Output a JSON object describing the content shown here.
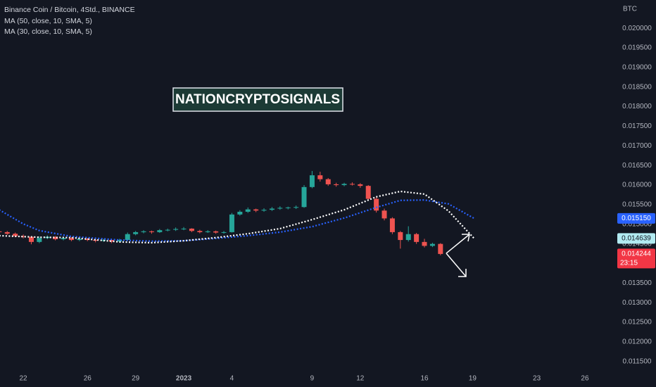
{
  "chart_data": {
    "type": "candlestick",
    "title": "Binance Coin / Bitcoin, 4Std., BINANCE",
    "axis_unit": "BTC",
    "watermark": "NATIONCRYPTOSIGNALS",
    "up_color": "#26a69a",
    "down_color": "#ef5350",
    "grid": false,
    "xlim": [
      -1.45,
      36.93
    ],
    "xticks": [
      {
        "value": 0,
        "label": "22"
      },
      {
        "value": 4,
        "label": "26"
      },
      {
        "value": 7,
        "label": "29"
      },
      {
        "value": 10,
        "label": "2023"
      },
      {
        "value": 13,
        "label": "4"
      },
      {
        "value": 18,
        "label": "9"
      },
      {
        "value": 21,
        "label": "12"
      },
      {
        "value": 25,
        "label": "16"
      },
      {
        "value": 28,
        "label": "19"
      },
      {
        "value": 32,
        "label": "23"
      },
      {
        "value": 35,
        "label": "26"
      }
    ],
    "ylim": [
      0.01121,
      0.02072
    ],
    "yticks": [
      {
        "value": 0.0115,
        "label": "0.011500"
      },
      {
        "value": 0.012,
        "label": "0.012000"
      },
      {
        "value": 0.0125,
        "label": "0.012500"
      },
      {
        "value": 0.013,
        "label": "0.013000"
      },
      {
        "value": 0.0135,
        "label": "0.013500"
      },
      {
        "value": 0.014,
        "label": "0.014000"
      },
      {
        "value": 0.0145,
        "label": "0.014500"
      },
      {
        "value": 0.015,
        "label": "0.015000"
      },
      {
        "value": 0.0155,
        "label": "0.015500"
      },
      {
        "value": 0.016,
        "label": "0.016000"
      },
      {
        "value": 0.0165,
        "label": "0.016500"
      },
      {
        "value": 0.017,
        "label": "0.017000"
      },
      {
        "value": 0.0175,
        "label": "0.017500"
      },
      {
        "value": 0.018,
        "label": "0.018000"
      },
      {
        "value": 0.0185,
        "label": "0.018500"
      },
      {
        "value": 0.019,
        "label": "0.019000"
      },
      {
        "value": 0.0195,
        "label": "0.019500"
      },
      {
        "value": 0.02,
        "label": "0.020000"
      }
    ],
    "x": [
      -1.5,
      -1,
      -0.5,
      0,
      0.5,
      1,
      1.5,
      2,
      2.5,
      3,
      3.5,
      4,
      4.5,
      5,
      5.5,
      6,
      6.5,
      7,
      7.5,
      8,
      8.5,
      9,
      9.5,
      10,
      10.5,
      11,
      11.5,
      12,
      12.5,
      13,
      13.5,
      14,
      14.5,
      15,
      15.5,
      16,
      16.5,
      17,
      17.5,
      18,
      18.5,
      19,
      19.5,
      20,
      20.5,
      21,
      21.5,
      22,
      22.5,
      23,
      23.5,
      24,
      24.5,
      25,
      25.5,
      26
    ],
    "ohlc": [
      [
        0.01482,
        0.01486,
        0.01477,
        0.0148
      ],
      [
        0.0148,
        0.01483,
        0.01473,
        0.01476
      ],
      [
        0.01476,
        0.01479,
        0.01467,
        0.0147
      ],
      [
        0.0147,
        0.01474,
        0.01464,
        0.01468
      ],
      [
        0.01468,
        0.0147,
        0.01449,
        0.01455
      ],
      [
        0.01455,
        0.01469,
        0.01452,
        0.01465
      ],
      [
        0.01465,
        0.01472,
        0.01462,
        0.01468
      ],
      [
        0.01468,
        0.0147,
        0.01459,
        0.01462
      ],
      [
        0.01462,
        0.01469,
        0.01459,
        0.01465
      ],
      [
        0.01465,
        0.01467,
        0.01457,
        0.0146
      ],
      [
        0.0146,
        0.01466,
        0.01457,
        0.01463
      ],
      [
        0.01463,
        0.01465,
        0.01457,
        0.0146
      ],
      [
        0.0146,
        0.01462,
        0.01454,
        0.01458
      ],
      [
        0.01458,
        0.01463,
        0.01455,
        0.0146
      ],
      [
        0.0146,
        0.01462,
        0.01452,
        0.01456
      ],
      [
        0.01456,
        0.01463,
        0.01453,
        0.0146
      ],
      [
        0.0146,
        0.01479,
        0.01458,
        0.01475
      ],
      [
        0.01475,
        0.01483,
        0.01472,
        0.0148
      ],
      [
        0.0148,
        0.01485,
        0.01477,
        0.01482
      ],
      [
        0.01482,
        0.01484,
        0.01476,
        0.0148
      ],
      [
        0.0148,
        0.01488,
        0.01478,
        0.01485
      ],
      [
        0.01485,
        0.01489,
        0.01482,
        0.01486
      ],
      [
        0.01486,
        0.01492,
        0.01483,
        0.01488
      ],
      [
        0.01488,
        0.01493,
        0.01485,
        0.01489
      ],
      [
        0.01489,
        0.0149,
        0.0148,
        0.01483
      ],
      [
        0.01483,
        0.01486,
        0.01477,
        0.0148
      ],
      [
        0.0148,
        0.01485,
        0.01478,
        0.01482
      ],
      [
        0.01482,
        0.01484,
        0.01476,
        0.01479
      ],
      [
        0.01479,
        0.01483,
        0.01476,
        0.0148
      ],
      [
        0.0148,
        0.01529,
        0.01479,
        0.01525
      ],
      [
        0.01525,
        0.01536,
        0.01522,
        0.01532
      ],
      [
        0.01532,
        0.01543,
        0.01529,
        0.01538
      ],
      [
        0.01538,
        0.0154,
        0.01531,
        0.01535
      ],
      [
        0.01535,
        0.01541,
        0.01532,
        0.01537
      ],
      [
        0.01537,
        0.01544,
        0.01534,
        0.0154
      ],
      [
        0.0154,
        0.01546,
        0.01537,
        0.01542
      ],
      [
        0.01542,
        0.01545,
        0.01538,
        0.01543
      ],
      [
        0.01543,
        0.01548,
        0.01539,
        0.01544
      ],
      [
        0.01544,
        0.016,
        0.01542,
        0.01595
      ],
      [
        0.01595,
        0.01636,
        0.01592,
        0.01625
      ],
      [
        0.01625,
        0.01634,
        0.01609,
        0.01615
      ],
      [
        0.01615,
        0.01618,
        0.01598,
        0.01602
      ],
      [
        0.01602,
        0.01606,
        0.01596,
        0.016
      ],
      [
        0.016,
        0.01606,
        0.01597,
        0.01603
      ],
      [
        0.01603,
        0.01607,
        0.01599,
        0.01602
      ],
      [
        0.01602,
        0.01605,
        0.01593,
        0.01598
      ],
      [
        0.01598,
        0.016,
        0.0156,
        0.01565
      ],
      [
        0.01565,
        0.01569,
        0.0153,
        0.01535
      ],
      [
        0.01535,
        0.0154,
        0.0151,
        0.01515
      ],
      [
        0.01515,
        0.01518,
        0.01475,
        0.0148
      ],
      [
        0.0148,
        0.01483,
        0.01438,
        0.0146
      ],
      [
        0.0146,
        0.01495,
        0.01456,
        0.01475
      ],
      [
        0.01475,
        0.01478,
        0.0145,
        0.01455
      ],
      [
        0.01455,
        0.01463,
        0.01441,
        0.01445
      ],
      [
        0.01445,
        0.01453,
        0.01442,
        0.0145
      ],
      [
        0.0145,
        0.01452,
        0.01421,
        0.014244
      ]
    ],
    "series": [
      {
        "name": "MA (50, close, 10, SMA, 5)",
        "color": "#2962ff",
        "x": [
          -1.5,
          0,
          1,
          3,
          6,
          8,
          10,
          12,
          14,
          16,
          18,
          20,
          22,
          23.5,
          25,
          26.5,
          28.1
        ],
        "values": [
          0.01537,
          0.01501,
          0.01484,
          0.01469,
          0.0146,
          0.01457,
          0.01458,
          0.01464,
          0.01471,
          0.0148,
          0.01494,
          0.01516,
          0.01543,
          0.01561,
          0.01562,
          0.01552,
          0.01515
        ]
      },
      {
        "name": "MA (30, close, 10, SMA, 5)",
        "color": "#ffffff",
        "x": [
          -1.5,
          1,
          3,
          6,
          8,
          10,
          12,
          14,
          16,
          18,
          20,
          22,
          23.5,
          25,
          26.5,
          28.1
        ],
        "values": [
          0.01471,
          0.01467,
          0.01466,
          0.01455,
          0.01453,
          0.01458,
          0.01466,
          0.01476,
          0.01489,
          0.01512,
          0.01537,
          0.0157,
          0.01584,
          0.01577,
          0.01534,
          0.014639
        ]
      }
    ],
    "price_labels": [
      {
        "value": 0.01515,
        "label": "0.015150",
        "color": "#2962ff",
        "text_color": "#ffffff"
      },
      {
        "value": 0.014639,
        "label": "0.014639",
        "color": "#b2ebf2",
        "text_color": "#131722"
      },
      {
        "value": 0.014244,
        "label": "0.014244",
        "time": "23:15",
        "color": "#f23645",
        "text_color": "#ffffff"
      }
    ]
  }
}
